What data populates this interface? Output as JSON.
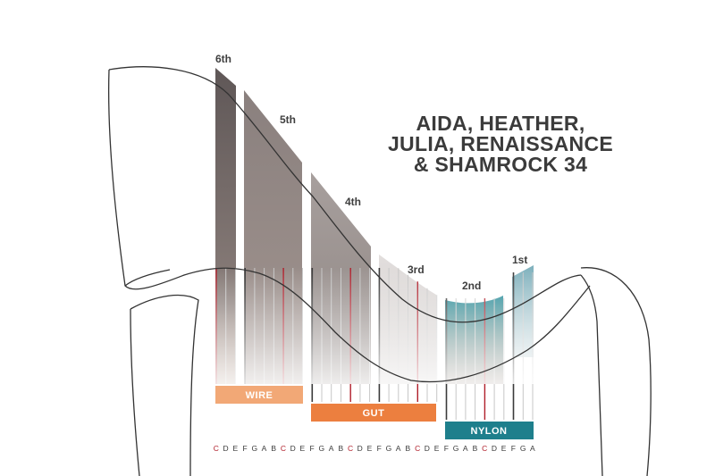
{
  "title": {
    "lines": [
      "AIDA, HEATHER,",
      "JULIA, RENAISSANCE",
      "& SHAMROCK 34"
    ]
  },
  "octaves": [
    {
      "label": "6th",
      "color": "#6e6564"
    },
    {
      "label": "5th",
      "color": "#8a807d"
    },
    {
      "label": "4th",
      "color": "#9c9390"
    },
    {
      "label": "3rd",
      "color": "#c9c4c2"
    },
    {
      "label": "2nd",
      "color": "#2f8f9b"
    },
    {
      "label": "1st",
      "color": "#6fa8b5"
    }
  ],
  "string_types": [
    {
      "label": "WIRE",
      "color": "#f2a876"
    },
    {
      "label": "GUT",
      "color": "#ec7f3f"
    },
    {
      "label": "NYLON",
      "color": "#1e7f8c"
    }
  ],
  "notes": [
    "C",
    "D",
    "E",
    "F",
    "G",
    "A",
    "B",
    "C",
    "D",
    "E",
    "F",
    "G",
    "A",
    "B",
    "C",
    "D",
    "E",
    "F",
    "G",
    "A",
    "B",
    "C",
    "D",
    "E",
    "F",
    "G",
    "A",
    "B",
    "C",
    "D",
    "E",
    "F",
    "G",
    "A"
  ],
  "colors": {
    "c_string": "#b01e2a",
    "f_string": "#3a3a3a",
    "other_string": "#c7c7c7",
    "frame_outline": "#333333",
    "note_text": "#3a3a3a"
  }
}
